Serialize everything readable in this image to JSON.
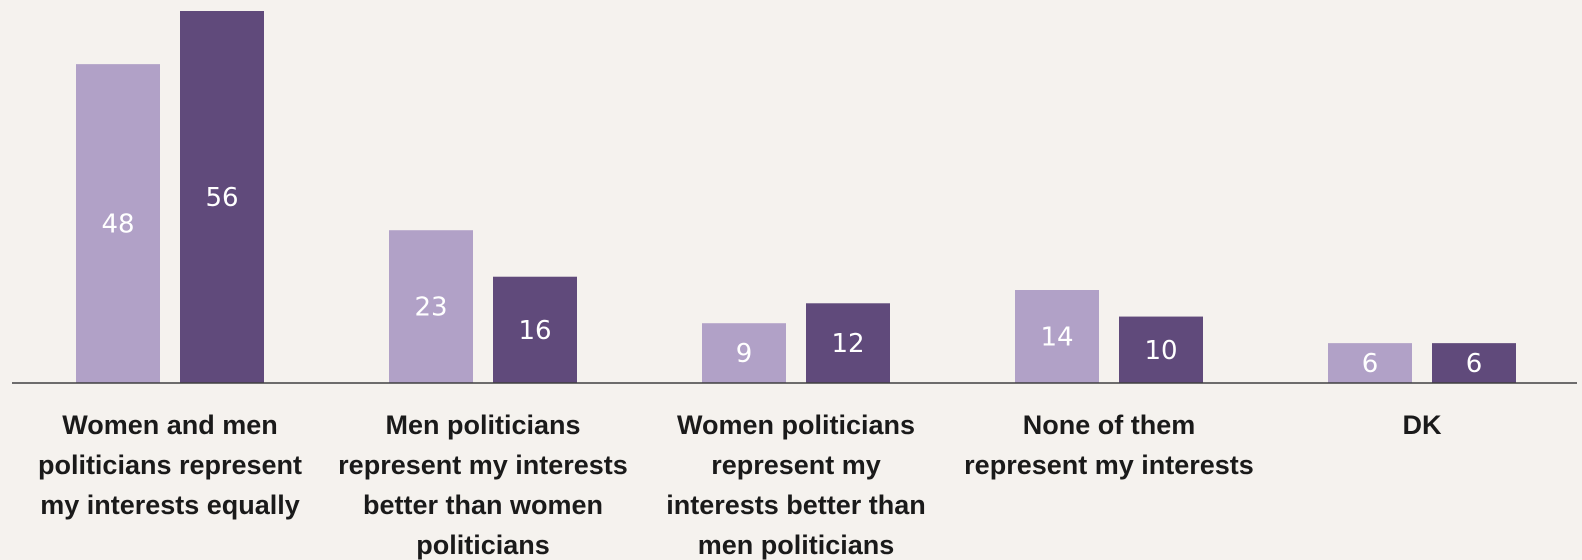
{
  "colors": {
    "background": "#f5f2ee",
    "series_1": "#b1a1c7",
    "series_2": "#604a7b",
    "axis": "#404040",
    "label_text": "#ffffff",
    "category_text": "#1a1a1a"
  },
  "chart_data": {
    "type": "bar",
    "title": "",
    "xlabel": "",
    "ylabel": "",
    "ylim": [
      0,
      56
    ],
    "grid": false,
    "legend": "none",
    "categories": [
      [
        "Women and men",
        "politicians represent",
        "my interests equally"
      ],
      [
        "Men politicians",
        "represent my interests",
        "better than women",
        "politicians"
      ],
      [
        "Women politicians",
        "represent my",
        "interests better than",
        "men politicians"
      ],
      [
        "None of them",
        "represent my interests"
      ],
      [
        "DK"
      ]
    ],
    "series": [
      {
        "values": [
          48,
          23,
          9,
          14,
          6
        ]
      },
      {
        "values": [
          56,
          16,
          12,
          10,
          6
        ]
      }
    ]
  }
}
